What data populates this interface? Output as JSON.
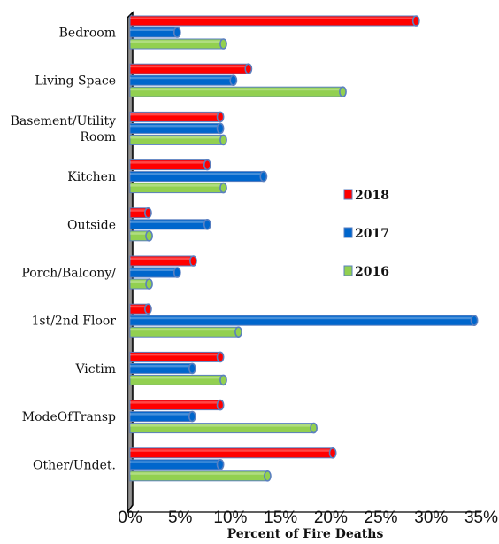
{
  "chart_data": {
    "type": "bar",
    "orientation": "horizontal",
    "categories": [
      [
        "Bedroom"
      ],
      [
        "Living Space"
      ],
      [
        "Basement/Utility",
        "Room"
      ],
      [
        "Kitchen"
      ],
      [
        "Outside"
      ],
      [
        "Porch/Balcony/"
      ],
      [
        "1st/2nd Floor"
      ],
      [
        "Victim"
      ],
      [
        "ModeOfTransp"
      ],
      [
        "Other/Undet."
      ]
    ],
    "series": [
      {
        "name": "2018",
        "color": "#ff0000",
        "values": [
          28.5,
          11.8,
          9.0,
          7.7,
          1.8,
          6.3,
          1.8,
          9.0,
          9.0,
          20.2
        ]
      },
      {
        "name": "2017",
        "color": "#0066cc",
        "values": [
          4.7,
          10.3,
          9.0,
          13.3,
          7.7,
          4.7,
          34.3,
          6.2,
          6.2,
          9.0
        ]
      },
      {
        "name": "2016",
        "color": "#92d050",
        "values": [
          9.3,
          21.2,
          9.3,
          9.3,
          1.9,
          1.9,
          10.8,
          9.3,
          18.3,
          13.7
        ]
      }
    ],
    "xlim": [
      0,
      35
    ],
    "xticks": [
      "0%",
      "5%",
      "10%",
      "15%",
      "20%",
      "25%",
      "30%",
      "35%"
    ],
    "xlabel": "Percent of Fire Deaths",
    "legend_placement": "right"
  }
}
